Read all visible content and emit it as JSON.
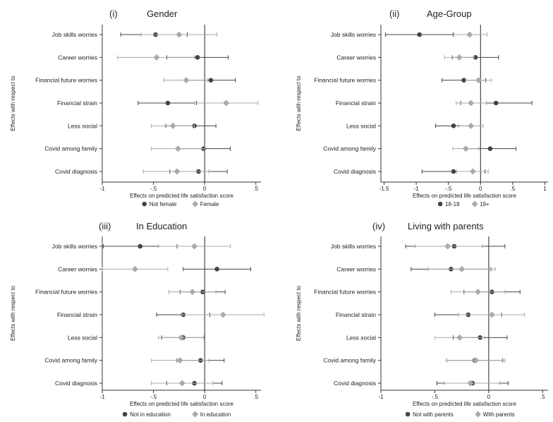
{
  "chart_data": [
    {
      "type": "scatter",
      "panel_label": "(i)",
      "title": "Gender",
      "xlabel": "Effects on predicted life satisfaction score",
      "ylabel": "Effects with respect to",
      "categories": [
        "Job skills worries",
        "Career worries",
        "Financial future worries",
        "Financial strain",
        "Less social",
        "Covid among family",
        "Covid diagnosis"
      ],
      "xlim": [
        -1,
        0.55
      ],
      "xticks": [
        -1,
        -0.5,
        0,
        0.5
      ],
      "xtick_labels": [
        "-1",
        "-.5",
        "0",
        ".5"
      ],
      "series": [
        {
          "name": "Not female",
          "color": "#444444",
          "marker": "circle",
          "values": [
            -0.48,
            -0.07,
            0.06,
            -0.36,
            -0.1,
            -0.01,
            -0.06
          ],
          "ci_low": [
            -0.82,
            -0.37,
            -0.18,
            -0.65,
            -0.38,
            -0.27,
            -0.34
          ],
          "ci_high": [
            -0.17,
            0.23,
            0.3,
            -0.08,
            0.11,
            0.25,
            0.22
          ]
        },
        {
          "name": "Female",
          "color": "#aaaaaa",
          "marker": "diamond",
          "values": [
            -0.25,
            -0.47,
            -0.18,
            0.21,
            -0.31,
            -0.26,
            -0.27
          ],
          "ci_low": [
            -0.62,
            -0.85,
            -0.4,
            -0.1,
            -0.52,
            -0.52,
            -0.6
          ],
          "ci_high": [
            0.12,
            -0.1,
            0.03,
            0.52,
            -0.1,
            0.0,
            0.04
          ]
        }
      ]
    },
    {
      "type": "scatter",
      "panel_label": "(ii)",
      "title": "Age-Group",
      "xlabel": "Effects on predicted life satisfaction score",
      "ylabel": "Effects with respect to",
      "categories": [
        "Job skills worries",
        "Career worries",
        "Financial future worries",
        "Financial strain",
        "Less social",
        "Covid among family",
        "Covid diagnosis"
      ],
      "xlim": [
        -1.55,
        1.05
      ],
      "xticks": [
        -1.5,
        -1,
        -0.5,
        0,
        0.5,
        1
      ],
      "xtick_labels": [
        "-1.5",
        "-1",
        "-.5",
        "0",
        ".5",
        "1"
      ],
      "series": [
        {
          "name": "16-18",
          "color": "#444444",
          "marker": "circle",
          "values": [
            -0.95,
            -0.08,
            -0.26,
            0.24,
            -0.42,
            0.15,
            -0.42
          ],
          "ci_low": [
            -1.48,
            -0.44,
            -0.6,
            -0.31,
            -0.7,
            -0.24,
            -0.91
          ],
          "ci_high": [
            -0.42,
            0.28,
            0.08,
            0.8,
            -0.14,
            0.55,
            0.07
          ]
        },
        {
          "name": "19+",
          "color": "#aaaaaa",
          "marker": "diamond",
          "values": [
            -0.17,
            -0.33,
            -0.03,
            -0.15,
            -0.15,
            -0.23,
            -0.12
          ],
          "ci_low": [
            -0.43,
            -0.56,
            -0.23,
            -0.38,
            -0.34,
            -0.43,
            -0.37
          ],
          "ci_high": [
            0.1,
            -0.1,
            0.17,
            0.09,
            0.04,
            -0.03,
            0.12
          ]
        }
      ]
    },
    {
      "type": "scatter",
      "panel_label": "(iii)",
      "title": "In Education",
      "xlabel": "Effects on predicted life satisfaction score",
      "ylabel": "Effects with respect to",
      "categories": [
        "Job skills worries",
        "Career worries",
        "Financial future worries",
        "Financial strain",
        "Less social",
        "Covid among family",
        "Covid diagnosis"
      ],
      "xlim": [
        -1,
        0.55
      ],
      "xticks": [
        -1,
        -0.5,
        0,
        0.5
      ],
      "xtick_labels": [
        "-1",
        "-.5",
        "0",
        ".5"
      ],
      "series": [
        {
          "name": "Not in education",
          "color": "#444444",
          "marker": "circle",
          "values": [
            -0.63,
            0.12,
            -0.02,
            -0.21,
            -0.21,
            -0.04,
            -0.1
          ],
          "ci_low": [
            -0.99,
            -0.21,
            -0.24,
            -0.47,
            -0.42,
            -0.27,
            -0.37
          ],
          "ci_high": [
            -0.27,
            0.45,
            0.2,
            0.05,
            0.0,
            0.19,
            0.17
          ]
        },
        {
          "name": "In education",
          "color": "#aaaaaa",
          "marker": "diamond",
          "values": [
            -0.1,
            -0.68,
            -0.12,
            0.18,
            -0.23,
            -0.24,
            -0.22
          ],
          "ci_low": [
            -0.45,
            -1.0,
            -0.35,
            -0.22,
            -0.45,
            -0.52,
            -0.52
          ],
          "ci_high": [
            0.25,
            -0.36,
            0.11,
            0.58,
            -0.01,
            0.04,
            0.08
          ]
        }
      ]
    },
    {
      "type": "scatter",
      "panel_label": "(iv)",
      "title": "Living with parents",
      "xlabel": "Effects on predicted life satisfaction score",
      "ylabel": "Effects with respect to",
      "categories": [
        "Job skills worries",
        "Career worries",
        "Financial future worries",
        "Financial strain",
        "Less social",
        "Covid among family",
        "Covid diagnosis"
      ],
      "xlim": [
        -1,
        0.55
      ],
      "xticks": [
        -1,
        -0.5,
        0,
        0.5
      ],
      "xtick_labels": [
        "-1",
        "-.5",
        "0",
        ".5"
      ],
      "series": [
        {
          "name": "Not with parents",
          "color": "#444444",
          "marker": "circle",
          "values": [
            -0.32,
            -0.35,
            0.03,
            -0.19,
            -0.08,
            -0.13,
            -0.15
          ],
          "ci_low": [
            -0.77,
            -0.72,
            -0.23,
            -0.5,
            -0.33,
            -0.39,
            -0.48
          ],
          "ci_high": [
            0.15,
            0.02,
            0.29,
            0.12,
            0.17,
            0.13,
            0.18
          ]
        },
        {
          "name": "With parents",
          "color": "#aaaaaa",
          "marker": "diamond",
          "values": [
            -0.38,
            -0.25,
            -0.1,
            0.03,
            -0.27,
            -0.12,
            -0.17
          ],
          "ci_low": [
            -0.68,
            -0.56,
            -0.35,
            -0.28,
            -0.5,
            -0.39,
            -0.41
          ],
          "ci_high": [
            -0.06,
            0.06,
            0.15,
            0.33,
            -0.04,
            0.15,
            0.1
          ]
        }
      ]
    }
  ]
}
